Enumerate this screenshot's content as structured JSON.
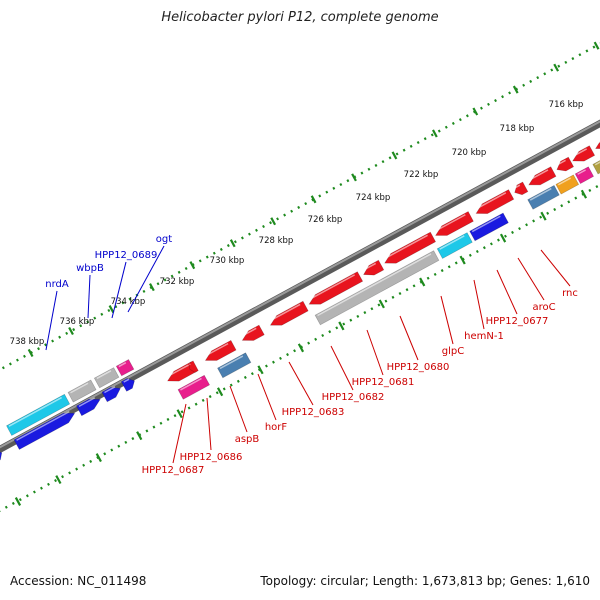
{
  "title": "Helicobacter pylori P12, complete genome",
  "footer": {
    "accession": "Accession: NC_011498",
    "summary": "Topology: circular; Length: 1,673,813 bp; Genes: 1,610"
  },
  "colors": {
    "background": "#ffffff",
    "backbone": "#7a7a7a",
    "scale_dots": "#1e8a1e",
    "forward_label": "#0000cc",
    "reverse_label": "#cc0000",
    "red_feature": "#e8141e",
    "blue_feature": "#1a1ae0",
    "cyan_feature": "#1ec8e8",
    "grey_feature": "#b4b4b4",
    "pink_feature": "#e81e8c",
    "steel_feature": "#4a7fb0",
    "orange_feature": "#f0a01e",
    "olive_feature": "#b0a040"
  },
  "scale_labels": [
    "716 kbp",
    "718 kbp",
    "720 kbp",
    "722 kbp",
    "724 kbp",
    "726 kbp",
    "728 kbp",
    "730 kbp",
    "732 kbp",
    "734 kbp",
    "736 kbp",
    "738 kbp"
  ],
  "forward_genes": [
    "nrdA",
    "wbpB",
    "HPP12_0689",
    "ogt"
  ],
  "reverse_genes": [
    "rnc",
    "aroC",
    "HPP12_0677",
    "hemN-1",
    "glpC",
    "HPP12_0680",
    "HPP12_0681",
    "HPP12_0682",
    "HPP12_0683",
    "horF",
    "aspB",
    "HPP12_0686",
    "HPP12_0687"
  ]
}
